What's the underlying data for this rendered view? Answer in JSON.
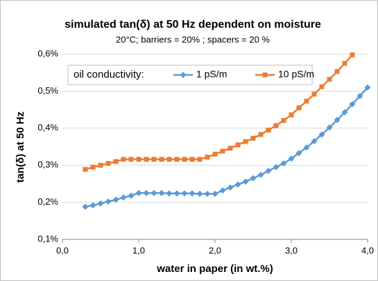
{
  "chart_data": {
    "type": "line",
    "title": "simulated tan(δ) at 50 Hz dependent on moisture",
    "subtitle": "20°C; barriers = 20% ; spacers = 20 %",
    "x_label": "water in paper (in wt.%)",
    "y_label": "tan(δ) at 50 Hz",
    "legend_title": "oil conductivity:",
    "legend": "top-left",
    "grid": true,
    "xlim": [
      0,
      4
    ],
    "ylim": [
      0.1,
      0.6
    ],
    "xticks": [
      {
        "value": 0,
        "label": "0,0"
      },
      {
        "value": 1,
        "label": "1,0"
      },
      {
        "value": 2,
        "label": "2,0"
      },
      {
        "value": 3,
        "label": "3,0"
      },
      {
        "value": 4,
        "label": "4,0"
      }
    ],
    "yticks": [
      {
        "value": 0.1,
        "label": "0,1%"
      },
      {
        "value": 0.2,
        "label": "0,2%"
      },
      {
        "value": 0.3,
        "label": "0,3%"
      },
      {
        "value": 0.4,
        "label": "0,4%"
      },
      {
        "value": 0.5,
        "label": "0,5%"
      },
      {
        "value": 0.6,
        "label": "0,6%"
      }
    ],
    "series": [
      {
        "name": "1 pS/m",
        "color": "#5b9bd5",
        "marker": "diamond",
        "x": [
          0.3,
          0.4,
          0.5,
          0.6,
          0.7,
          0.8,
          0.9,
          1.0,
          1.1,
          1.2,
          1.3,
          1.4,
          1.5,
          1.6,
          1.7,
          1.8,
          1.9,
          2.0,
          2.1,
          2.2,
          2.3,
          2.4,
          2.5,
          2.6,
          2.7,
          2.8,
          2.9,
          3.0,
          3.1,
          3.2,
          3.3,
          3.4,
          3.5,
          3.6,
          3.7,
          3.8,
          3.9,
          4.0
        ],
        "values": [
          0.188,
          0.192,
          0.197,
          0.202,
          0.207,
          0.213,
          0.218,
          0.225,
          0.225,
          0.225,
          0.225,
          0.224,
          0.224,
          0.224,
          0.224,
          0.223,
          0.223,
          0.223,
          0.232,
          0.24,
          0.248,
          0.256,
          0.265,
          0.274,
          0.285,
          0.295,
          0.305,
          0.318,
          0.333,
          0.348,
          0.365,
          0.383,
          0.402,
          0.422,
          0.443,
          0.465,
          0.487,
          0.51
        ]
      },
      {
        "name": "10 pS/m",
        "color": "#ed7d31",
        "marker": "square",
        "x": [
          0.3,
          0.4,
          0.5,
          0.6,
          0.7,
          0.8,
          0.9,
          1.0,
          1.1,
          1.2,
          1.3,
          1.4,
          1.5,
          1.6,
          1.7,
          1.8,
          1.9,
          2.0,
          2.1,
          2.2,
          2.3,
          2.4,
          2.5,
          2.6,
          2.7,
          2.8,
          2.9,
          3.0,
          3.1,
          3.2,
          3.3,
          3.4,
          3.5,
          3.6,
          3.7,
          3.8
        ],
        "values": [
          0.289,
          0.295,
          0.3,
          0.305,
          0.31,
          0.316,
          0.316,
          0.316,
          0.316,
          0.316,
          0.316,
          0.316,
          0.316,
          0.316,
          0.316,
          0.316,
          0.322,
          0.33,
          0.338,
          0.346,
          0.355,
          0.364,
          0.373,
          0.383,
          0.395,
          0.407,
          0.421,
          0.436,
          0.455,
          0.473,
          0.492,
          0.512,
          0.532,
          0.553,
          0.575,
          0.598
        ]
      }
    ]
  }
}
